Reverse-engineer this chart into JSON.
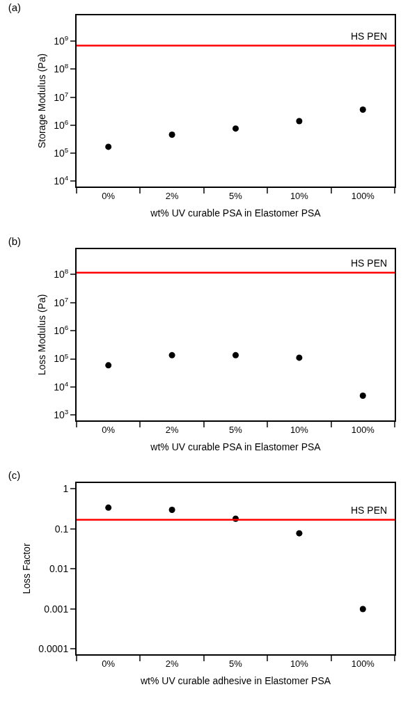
{
  "chart_data": [
    {
      "type": "scatter",
      "title": "(a)",
      "xlabel": "wt% UV curable PSA in Elastomer PSA",
      "ylabel": "Storage Modulus (Pa)",
      "categories": [
        "0%",
        "2%",
        "5%",
        "10%",
        "100%"
      ],
      "series": [
        {
          "color": "#000000",
          "values": [
            170000,
            460000,
            760000,
            1400000,
            3600000
          ]
        }
      ],
      "log": "y",
      "marker": "circle",
      "grid": false,
      "ylim": [
        6500,
        8300000000
      ],
      "yticks": [
        {
          "value": 10000,
          "label": "10$^{4}$"
        },
        {
          "value": 100000,
          "label": "10$^{5}$"
        },
        {
          "value": 1000000,
          "label": "10$^{6}$"
        },
        {
          "value": 10000000,
          "label": "10$^{7}$"
        },
        {
          "value": 100000000,
          "label": "10$^{8}$"
        },
        {
          "value": 1000000000,
          "label": "10$^{9}$"
        }
      ],
      "ref_lines": [
        {
          "axis": "y",
          "value": 690000000,
          "label": "HS PEN",
          "color": "#ff0000"
        }
      ]
    },
    {
      "type": "scatter",
      "title": "(b)",
      "xlabel": "wt% UV curable PSA in Elastomer PSA",
      "ylabel": "Loss Modulus (Pa)",
      "categories": [
        "0%",
        "2%",
        "5%",
        "10%",
        "100%"
      ],
      "series": [
        {
          "color": "#000000",
          "values": [
            59000,
            135000,
            135000,
            110000,
            4900
          ]
        }
      ],
      "log": "y",
      "marker": "circle",
      "grid": false,
      "ylim": [
        650,
        790000000
      ],
      "yticks": [
        {
          "value": 1000,
          "label": "10$^{3}$"
        },
        {
          "value": 10000,
          "label": "10$^{4}$"
        },
        {
          "value": 100000,
          "label": "10$^{5}$"
        },
        {
          "value": 1000000,
          "label": "10$^{6}$"
        },
        {
          "value": 10000000,
          "label": "10$^{7}$"
        },
        {
          "value": 100000000,
          "label": "10$^{8}$"
        }
      ],
      "ref_lines": [
        {
          "axis": "y",
          "value": 115000000,
          "label": "HS PEN",
          "color": "#ff0000"
        }
      ]
    },
    {
      "type": "scatter",
      "title": "(c)",
      "xlabel": "wt% UV curable adhesive in Elastomer PSA",
      "ylabel": "Loss Factor",
      "categories": [
        "0%",
        "2%",
        "5%",
        "10%",
        "100%"
      ],
      "series": [
        {
          "color": "#000000",
          "values": [
            0.34,
            0.3,
            0.18,
            0.078,
            0.001
          ]
        }
      ],
      "log": "y",
      "marker": "circle",
      "grid": false,
      "ylim": [
        7.4e-05,
        1.4
      ],
      "yticks": [
        {
          "value": 0.0001,
          "label": "0.0001"
        },
        {
          "value": 0.001,
          "label": "0.001"
        },
        {
          "value": 0.01,
          "label": "0.01"
        },
        {
          "value": 0.1,
          "label": "0.1"
        },
        {
          "value": 1,
          "label": "1"
        }
      ],
      "ref_lines": [
        {
          "axis": "y",
          "value": 0.17,
          "label": "HS PEN",
          "color": "#ff0000"
        }
      ]
    }
  ]
}
